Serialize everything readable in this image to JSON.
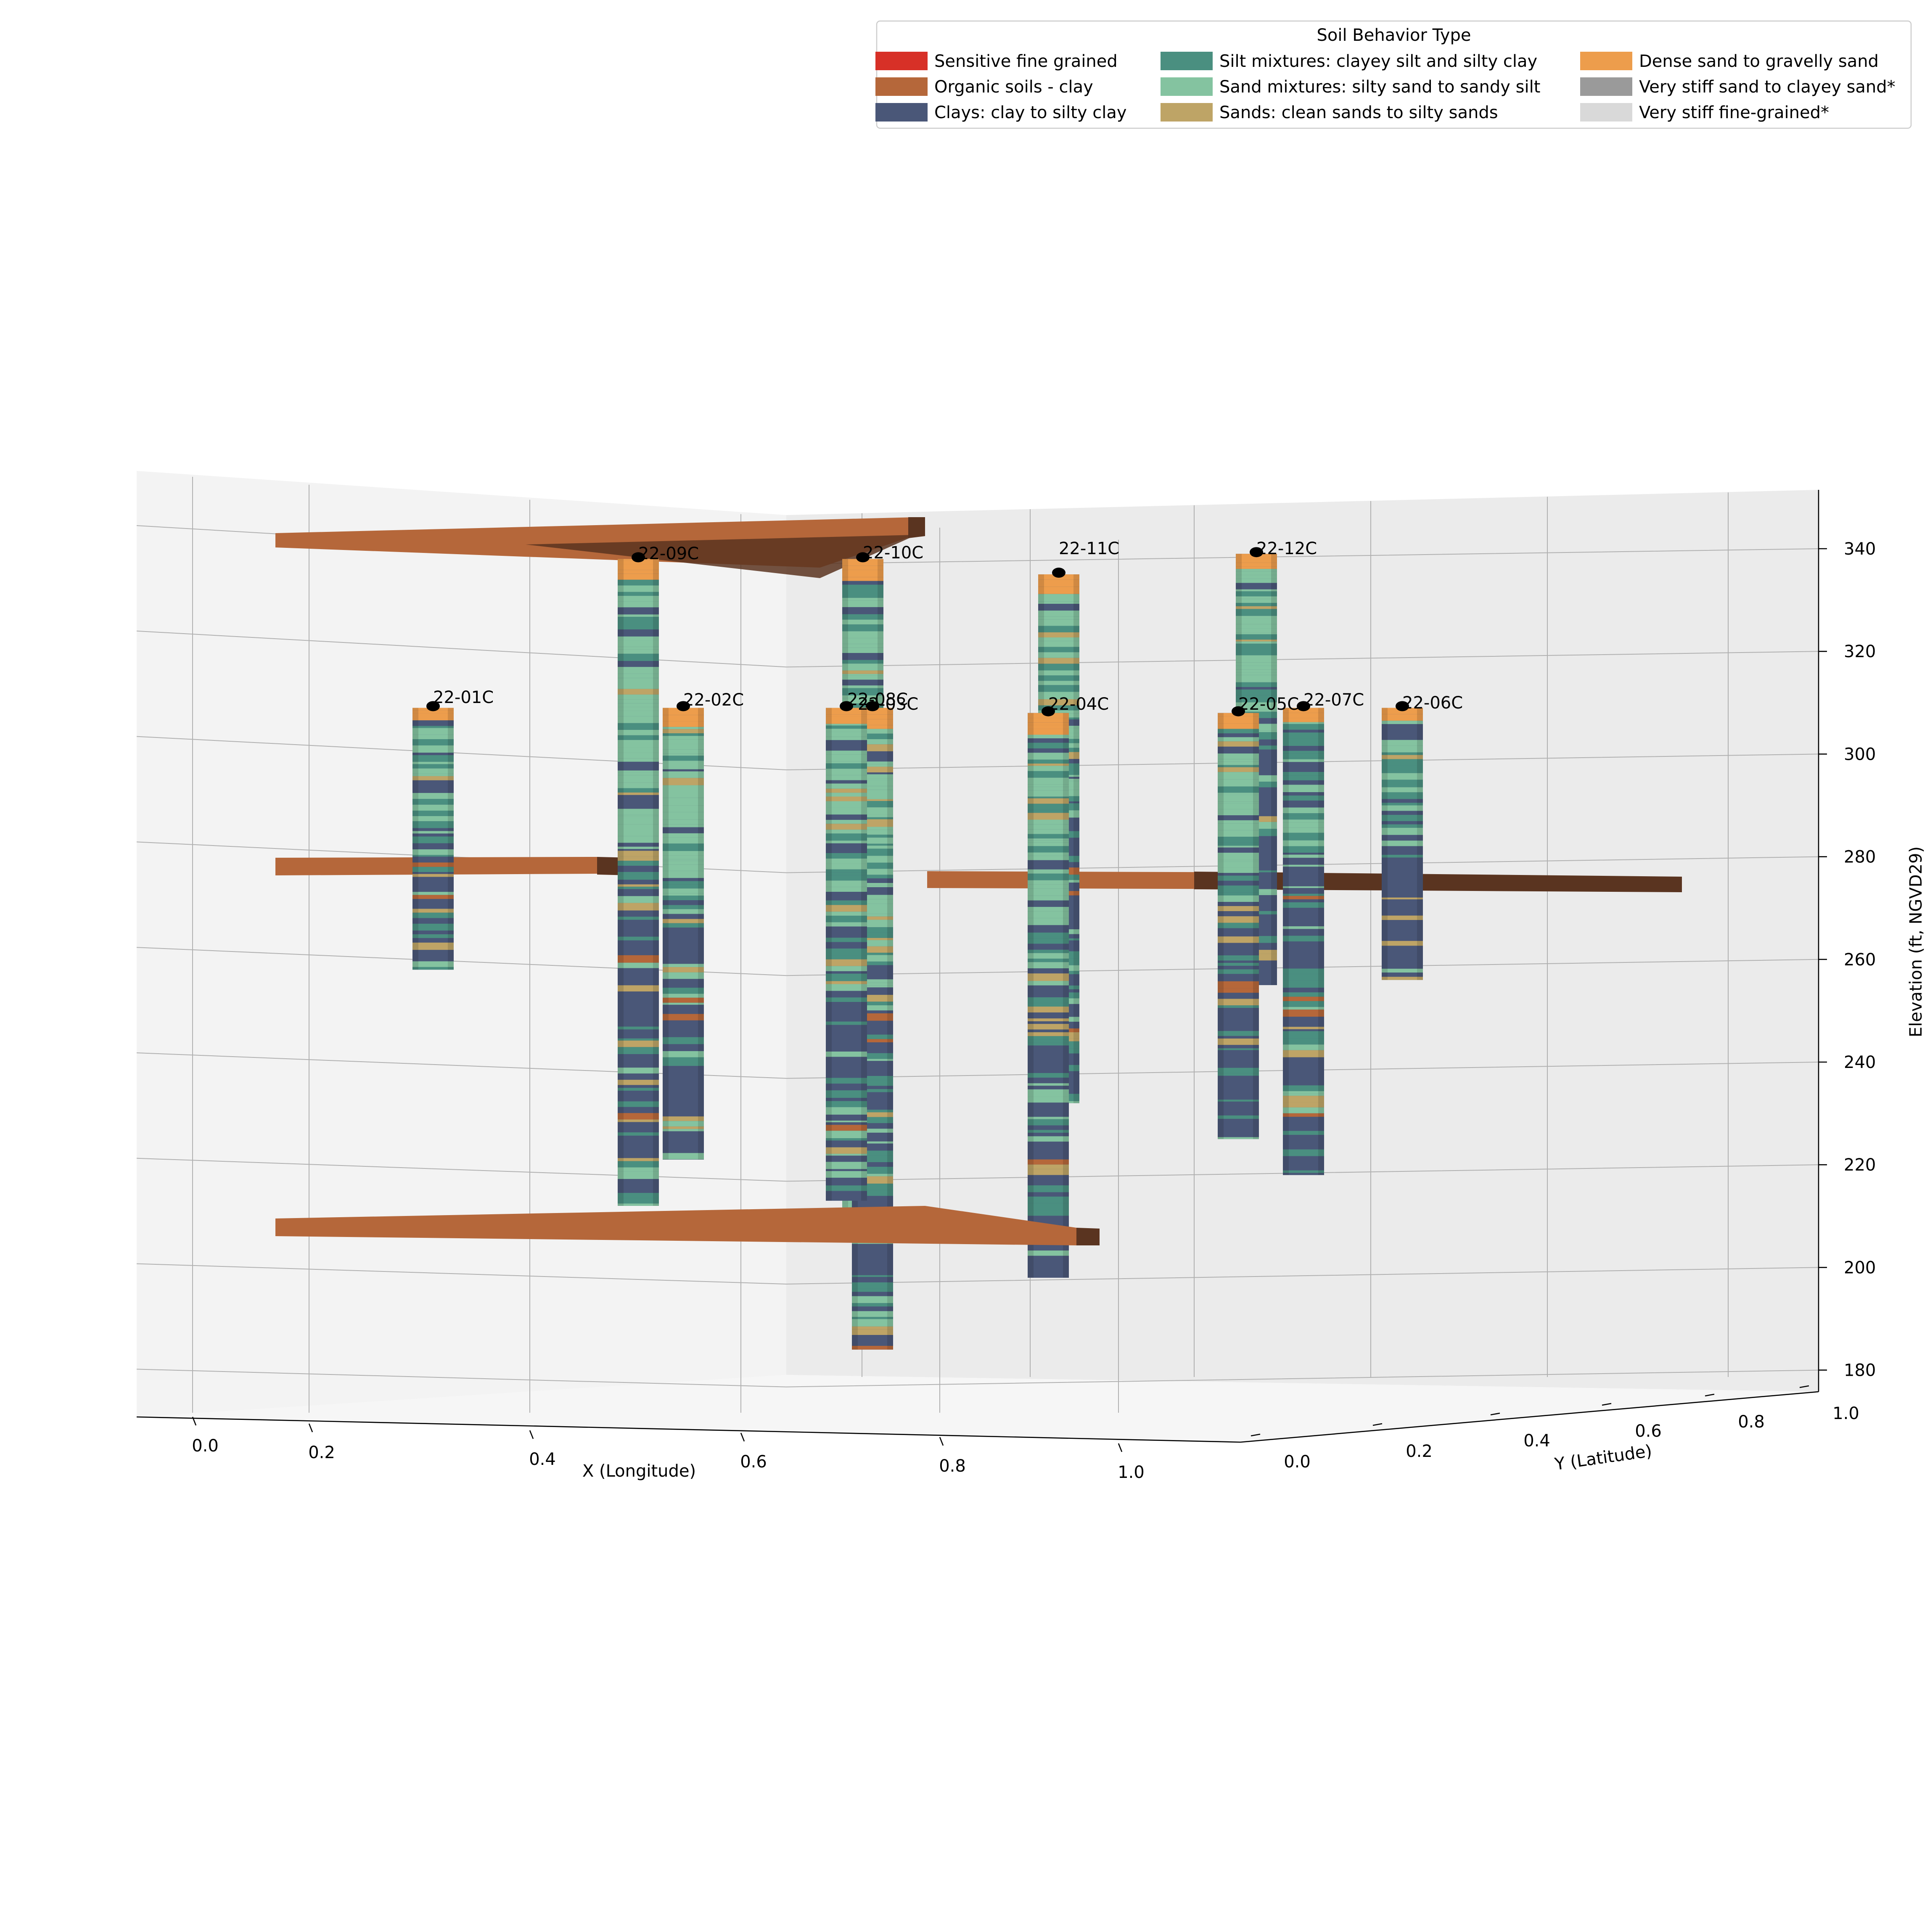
{
  "chart_data": {
    "type": "3d-borehole-columns",
    "xlabel": "X (Longitude)",
    "ylabel": "Y (Latitude)",
    "zlabel": "Elevation (ft, NGVD29)",
    "x_ticks": [
      "0.0",
      "0.2",
      "0.4",
      "0.6",
      "0.8",
      "1.0"
    ],
    "y_ticks": [
      "0.0",
      "0.2",
      "0.4",
      "0.6",
      "0.8",
      "1.0"
    ],
    "z_ticks": [
      "180",
      "200",
      "220",
      "240",
      "260",
      "280",
      "300",
      "320",
      "340"
    ],
    "zlim": [
      175,
      351
    ],
    "legend": {
      "title": "Soil Behavior Type",
      "placement": "top-right",
      "entries": [
        {
          "label": "Sensitive fine grained",
          "color": "#d73027"
        },
        {
          "label": "Organic soils - clay",
          "color": "#b5673a"
        },
        {
          "label": "Clays: clay to silty clay",
          "color": "#4a5778"
        },
        {
          "label": "Silt mixtures: clayey silt and silty clay",
          "color": "#4a8f80"
        },
        {
          "label": "Sand mixtures: silty sand to sandy silt",
          "color": "#84c3a0"
        },
        {
          "label": "Sands: clean sands to silty sands",
          "color": "#bea466"
        },
        {
          "label": "Dense sand to gravelly sand",
          "color": "#ed9d4c"
        },
        {
          "label": "Very stiff sand to clayey sand*",
          "color": "#9a9a9a"
        },
        {
          "label": "Very stiff fine-grained*",
          "color": "#d9d9d9"
        }
      ]
    },
    "boreholes": [
      {
        "id": "22-09C",
        "top": 338,
        "bottom": 212,
        "dominant": [
          "silt",
          "clay",
          "sand"
        ]
      },
      {
        "id": "22-10C",
        "top": 338,
        "bottom": 211,
        "dominant": [
          "sand",
          "clay"
        ]
      },
      {
        "id": "22-11C",
        "top": 335,
        "bottom": 232,
        "dominant": [
          "silt",
          "clay"
        ]
      },
      {
        "id": "22-12C",
        "top": 339,
        "bottom": 255,
        "dominant": [
          "sand",
          "silt",
          "clay"
        ]
      },
      {
        "id": "22-01C",
        "top": 309,
        "bottom": 258,
        "dominant": [
          "sand",
          "clay"
        ]
      },
      {
        "id": "22-02C",
        "top": 309,
        "bottom": 221,
        "dominant": [
          "sand",
          "clay"
        ]
      },
      {
        "id": "22-08C",
        "top": 309,
        "bottom": 184,
        "dominant": [
          "sand",
          "clay"
        ]
      },
      {
        "id": "22-03C",
        "top": 309,
        "bottom": 213,
        "dominant": [
          "sand",
          "clay"
        ]
      },
      {
        "id": "22-04C",
        "top": 308,
        "bottom": 198,
        "dominant": [
          "sand",
          "clay"
        ]
      },
      {
        "id": "22-05C",
        "top": 308,
        "bottom": 225,
        "dominant": [
          "sand",
          "clay"
        ]
      },
      {
        "id": "22-07C",
        "top": 309,
        "bottom": 218,
        "dominant": [
          "clay",
          "silt"
        ]
      },
      {
        "id": "22-06C",
        "top": 309,
        "bottom": 256,
        "dominant": [
          "sand",
          "clay"
        ]
      }
    ],
    "organic_layers": [
      {
        "name": "upper",
        "elevation": 340
      },
      {
        "name": "middle-left",
        "elevation": 277
      },
      {
        "name": "middle-right",
        "elevation": 274
      },
      {
        "name": "lower",
        "elevation": 206
      }
    ],
    "grid": true
  }
}
